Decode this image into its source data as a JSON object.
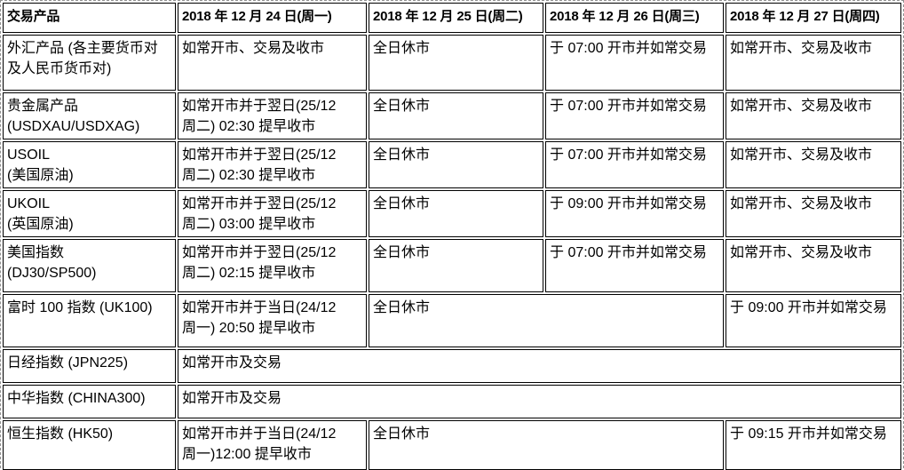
{
  "table": {
    "headers": [
      {
        "text": "交易产品"
      },
      {
        "text": "2018 年 12 月 24 日(周一)"
      },
      {
        "text": "2018 年 12 月 25 日(周二)"
      },
      {
        "text": "2018 年 12 月 26 日(周三)"
      },
      {
        "text": "2018 年 12 月 27 日(周四)"
      }
    ],
    "rows": [
      {
        "product": "外汇产品 (各主要货币对\n及人民币货币对)",
        "cells": [
          {
            "text": "如常开市、交易及收市",
            "colspan": 1
          },
          {
            "text": "全日休市",
            "colspan": 1
          },
          {
            "text": "于 07:00 开市并如常交易",
            "colspan": 1
          },
          {
            "text": "如常开市、交易及收市",
            "colspan": 1
          }
        ]
      },
      {
        "product": "贵金属产品\n(USDXAU/USDXAG)",
        "cells": [
          {
            "text": "如常开市并于翌日(25/12\n周二) 02:30 提早收市",
            "colspan": 1
          },
          {
            "text": "全日休市",
            "colspan": 1
          },
          {
            "text": "于 07:00 开市并如常交易",
            "colspan": 1
          },
          {
            "text": "如常开市、交易及收市",
            "colspan": 1
          }
        ]
      },
      {
        "product": "USOIL\n(美国原油)",
        "cells": [
          {
            "text": "如常开市并于翌日(25/12\n周二) 02:30 提早收市",
            "colspan": 1
          },
          {
            "text": "全日休市",
            "colspan": 1
          },
          {
            "text": "于 07:00 开市并如常交易",
            "colspan": 1
          },
          {
            "text": "如常开市、交易及收市",
            "colspan": 1
          }
        ]
      },
      {
        "product": "UKOIL\n(英国原油)",
        "cells": [
          {
            "text": "如常开市并于翌日(25/12\n周二) 03:00 提早收市",
            "colspan": 1
          },
          {
            "text": "全日休市",
            "colspan": 1
          },
          {
            "text": "于 09:00 开市并如常交易",
            "colspan": 1
          },
          {
            "text": "如常开市、交易及收市",
            "colspan": 1
          }
        ]
      },
      {
        "product": "美国指数\n(DJ30/SP500)",
        "cells": [
          {
            "text": "如常开市并于翌日(25/12\n周二) 02:15 提早收市",
            "colspan": 1
          },
          {
            "text": "全日休市",
            "colspan": 1
          },
          {
            "text": "于 07:00 开市并如常交易",
            "colspan": 1
          },
          {
            "text": "如常开市、交易及收市",
            "colspan": 1
          }
        ]
      },
      {
        "product": "富时 100 指数 (UK100)",
        "cells": [
          {
            "text": "如常开市并于当日(24/12\n周一) 20:50 提早收市",
            "colspan": 1
          },
          {
            "text": "全日休市",
            "colspan": 2
          },
          {
            "text": "于 09:00 开市并如常交易",
            "colspan": 1
          }
        ]
      },
      {
        "product": "日经指数 (JPN225)",
        "cells": [
          {
            "text": "如常开市及交易",
            "colspan": 4
          }
        ]
      },
      {
        "product": "中华指数 (CHINA300)",
        "cells": [
          {
            "text": "如常开市及交易",
            "colspan": 4
          }
        ]
      },
      {
        "product": "恒生指数 (HK50)",
        "cells": [
          {
            "text": "如常开市并于当日(24/12\n周一)12:00 提早收市",
            "colspan": 1
          },
          {
            "text": "全日休市",
            "colspan": 2
          },
          {
            "text": "于 09:15 开市并如常交易",
            "colspan": 1
          }
        ]
      }
    ]
  },
  "colors": {
    "cell_border": "#000000",
    "outer_frame": "#8f8f8f",
    "text": "#000000",
    "background": "#ffffff"
  }
}
